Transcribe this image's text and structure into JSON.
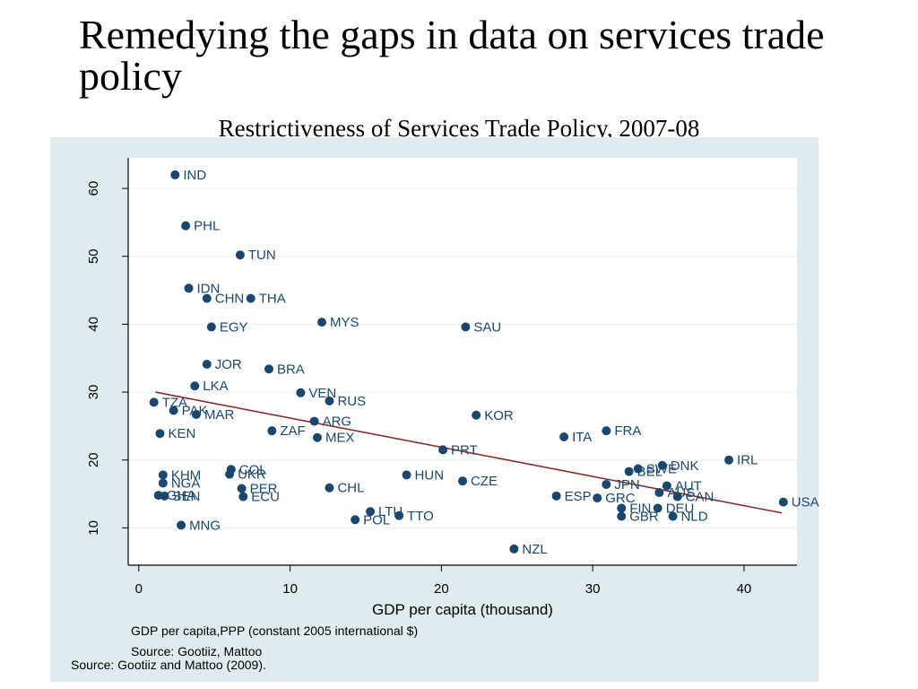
{
  "slide": {
    "title_line1": "Remedying the gaps in data on services trade",
    "title_line2": "policy"
  },
  "chart_data": {
    "type": "scatter",
    "title": "Restrictiveness of Services Trade Policy, 2007-08",
    "xlabel": "GDP per capita (thousand)",
    "ylabel": "",
    "xlim": [
      -0.7,
      43.5
    ],
    "ylim": [
      4.5,
      64.5
    ],
    "xticks": [
      0,
      10,
      20,
      30,
      40
    ],
    "yticks": [
      10,
      20,
      30,
      40,
      50,
      60
    ],
    "grid": true,
    "colors": {
      "points": "#1a476f",
      "fit_line": "#8b2c2c",
      "plot_bg": "#ffffff",
      "outer_bg": "#e0ebef",
      "grid": "#eaf2f3"
    },
    "fit_line": {
      "x": [
        1.1,
        42.5
      ],
      "y": [
        30.0,
        12.2
      ]
    },
    "points": [
      {
        "label": "IND",
        "x": 2.4,
        "y": 62.0
      },
      {
        "label": "PHL",
        "x": 3.1,
        "y": 54.5
      },
      {
        "label": "TUN",
        "x": 6.7,
        "y": 50.2
      },
      {
        "label": "IDN",
        "x": 3.3,
        "y": 45.3
      },
      {
        "label": "CHN",
        "x": 4.5,
        "y": 43.8
      },
      {
        "label": "THA",
        "x": 7.4,
        "y": 43.8
      },
      {
        "label": "EGY",
        "x": 4.8,
        "y": 39.6
      },
      {
        "label": "MYS",
        "x": 12.1,
        "y": 40.3
      },
      {
        "label": "SAU",
        "x": 21.6,
        "y": 39.6
      },
      {
        "label": "JOR",
        "x": 4.5,
        "y": 34.1
      },
      {
        "label": "BRA",
        "x": 8.6,
        "y": 33.4
      },
      {
        "label": "LKA",
        "x": 3.7,
        "y": 30.9
      },
      {
        "label": "VEN",
        "x": 10.7,
        "y": 29.9
      },
      {
        "label": "RUS",
        "x": 12.6,
        "y": 28.7
      },
      {
        "label": "TZA",
        "x": 1.0,
        "y": 28.5
      },
      {
        "label": "PAK",
        "x": 2.3,
        "y": 27.3
      },
      {
        "label": "MAR",
        "x": 3.8,
        "y": 26.7
      },
      {
        "label": "KOR",
        "x": 22.3,
        "y": 26.6
      },
      {
        "label": "ARG",
        "x": 11.6,
        "y": 25.7
      },
      {
        "label": "ZAF",
        "x": 8.8,
        "y": 24.3
      },
      {
        "label": "FRA",
        "x": 30.9,
        "y": 24.3
      },
      {
        "label": "KEN",
        "x": 1.4,
        "y": 23.9
      },
      {
        "label": "MEX",
        "x": 11.8,
        "y": 23.3
      },
      {
        "label": "ITA",
        "x": 28.1,
        "y": 23.4
      },
      {
        "label": "PRT",
        "x": 20.1,
        "y": 21.5
      },
      {
        "label": "IRL",
        "x": 39.0,
        "y": 20.0
      },
      {
        "label": "DNK",
        "x": 34.6,
        "y": 19.2
      },
      {
        "label": "COL",
        "x": 6.1,
        "y": 18.6
      },
      {
        "label": "SWE",
        "x": 33.0,
        "y": 18.7
      },
      {
        "label": "BEL",
        "x": 32.4,
        "y": 18.3
      },
      {
        "label": "KHM",
        "x": 1.6,
        "y": 17.8
      },
      {
        "label": "UKR",
        "x": 6.0,
        "y": 17.9
      },
      {
        "label": "HUN",
        "x": 17.7,
        "y": 17.8
      },
      {
        "label": "CZE",
        "x": 21.4,
        "y": 16.9
      },
      {
        "label": "NGA",
        "x": 1.6,
        "y": 16.6
      },
      {
        "label": "JPN",
        "x": 30.9,
        "y": 16.4
      },
      {
        "label": "AUT",
        "x": 34.9,
        "y": 16.2
      },
      {
        "label": "PER",
        "x": 6.8,
        "y": 15.8
      },
      {
        "label": "CHL",
        "x": 12.6,
        "y": 15.9
      },
      {
        "label": "AUS",
        "x": 34.4,
        "y": 15.2
      },
      {
        "label": "GHA",
        "x": 1.3,
        "y": 14.8
      },
      {
        "label": "SEN",
        "x": 1.7,
        "y": 14.7
      },
      {
        "label": "ECU",
        "x": 6.9,
        "y": 14.6
      },
      {
        "label": "ESP",
        "x": 27.6,
        "y": 14.7
      },
      {
        "label": "GRC",
        "x": 30.3,
        "y": 14.4
      },
      {
        "label": "CAN",
        "x": 35.6,
        "y": 14.6
      },
      {
        "label": "USA",
        "x": 42.6,
        "y": 13.8
      },
      {
        "label": "FIN",
        "x": 31.9,
        "y": 12.9
      },
      {
        "label": "DEU",
        "x": 34.3,
        "y": 12.9
      },
      {
        "label": "LTU",
        "x": 15.3,
        "y": 12.4
      },
      {
        "label": "GBR",
        "x": 31.9,
        "y": 11.7
      },
      {
        "label": "NLD",
        "x": 35.3,
        "y": 11.7
      },
      {
        "label": "TTO",
        "x": 17.2,
        "y": 11.8
      },
      {
        "label": "POL",
        "x": 14.3,
        "y": 11.2
      },
      {
        "label": "MNG",
        "x": 2.8,
        "y": 10.4
      },
      {
        "label": "NZL",
        "x": 24.8,
        "y": 6.9
      }
    ]
  },
  "notes": {
    "gdp_note": "GDP per capita,PPP (constant 2005 international $)",
    "source_small": "Source: Gootiiz, Mattoo",
    "source": "Source: Gootiiz and Mattoo (2009)."
  }
}
